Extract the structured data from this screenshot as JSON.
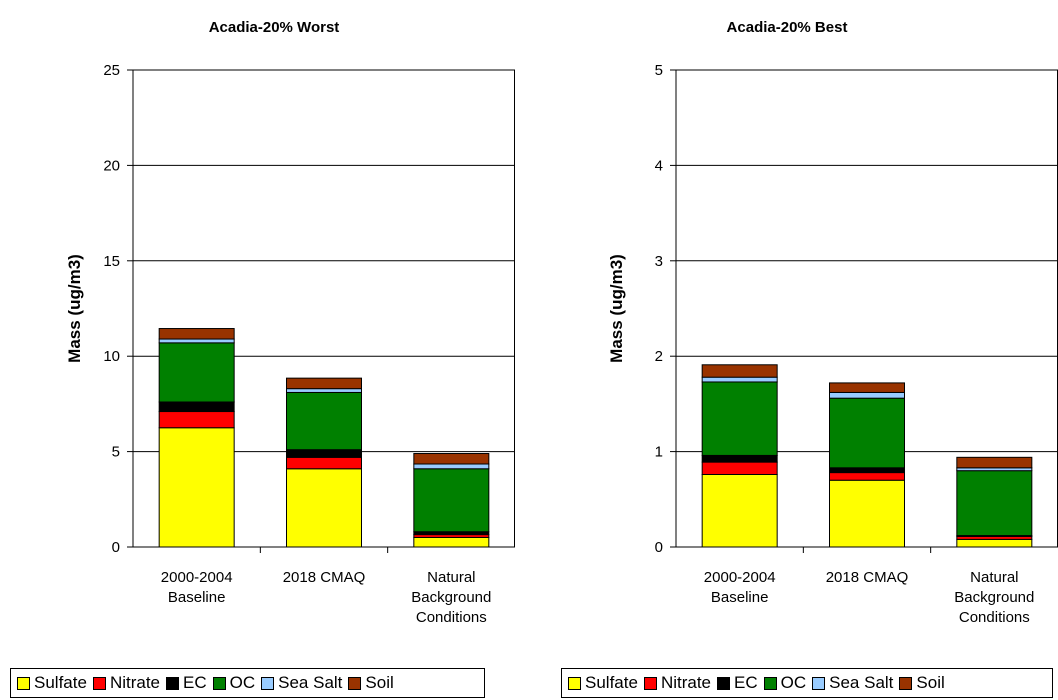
{
  "chart_data": [
    {
      "type": "bar",
      "stacked": true,
      "title": "Acadia-20% Worst",
      "ylabel": "Mass (ug/m3)",
      "xlabel": "",
      "ylim": [
        0,
        25
      ],
      "yticks": [
        0,
        5,
        10,
        15,
        20,
        25
      ],
      "grid": true,
      "legend": "bottom",
      "categories": [
        [
          "2000-2004",
          "Baseline"
        ],
        [
          "2018 CMAQ"
        ],
        [
          "Natural",
          "Background",
          "Conditions"
        ]
      ],
      "series": [
        {
          "name": "Sulfate",
          "color": "#ffff00",
          "values": [
            6.25,
            4.1,
            0.5
          ]
        },
        {
          "name": "Nitrate",
          "color": "#ff0000",
          "values": [
            0.85,
            0.6,
            0.15
          ]
        },
        {
          "name": "EC",
          "color": "#000000",
          "values": [
            0.5,
            0.4,
            0.15
          ]
        },
        {
          "name": "OC",
          "color": "#008000",
          "values": [
            3.1,
            3.0,
            3.3
          ]
        },
        {
          "name": "Sea Salt",
          "color": "#99ccff",
          "values": [
            0.2,
            0.2,
            0.25
          ]
        },
        {
          "name": "Soil",
          "color": "#993300",
          "values": [
            0.55,
            0.55,
            0.55
          ]
        }
      ]
    },
    {
      "type": "bar",
      "stacked": true,
      "title": "Acadia-20% Best",
      "ylabel": "Mass (ug/m3)",
      "xlabel": "",
      "ylim": [
        0,
        5
      ],
      "yticks": [
        0,
        1,
        2,
        3,
        4,
        5
      ],
      "grid": true,
      "legend": "bottom",
      "categories": [
        [
          "2000-2004",
          "Baseline"
        ],
        [
          "2018 CMAQ"
        ],
        [
          "Natural",
          "Background",
          "Conditions"
        ]
      ],
      "series": [
        {
          "name": "Sulfate",
          "color": "#ffff00",
          "values": [
            0.76,
            0.7,
            0.08
          ]
        },
        {
          "name": "Nitrate",
          "color": "#ff0000",
          "values": [
            0.13,
            0.08,
            0.03
          ]
        },
        {
          "name": "EC",
          "color": "#000000",
          "values": [
            0.07,
            0.05,
            0.01
          ]
        },
        {
          "name": "OC",
          "color": "#008000",
          "values": [
            0.77,
            0.73,
            0.68
          ]
        },
        {
          "name": "Sea Salt",
          "color": "#99ccff",
          "values": [
            0.05,
            0.06,
            0.03
          ]
        },
        {
          "name": "Soil",
          "color": "#993300",
          "values": [
            0.13,
            0.1,
            0.11
          ]
        }
      ]
    }
  ]
}
